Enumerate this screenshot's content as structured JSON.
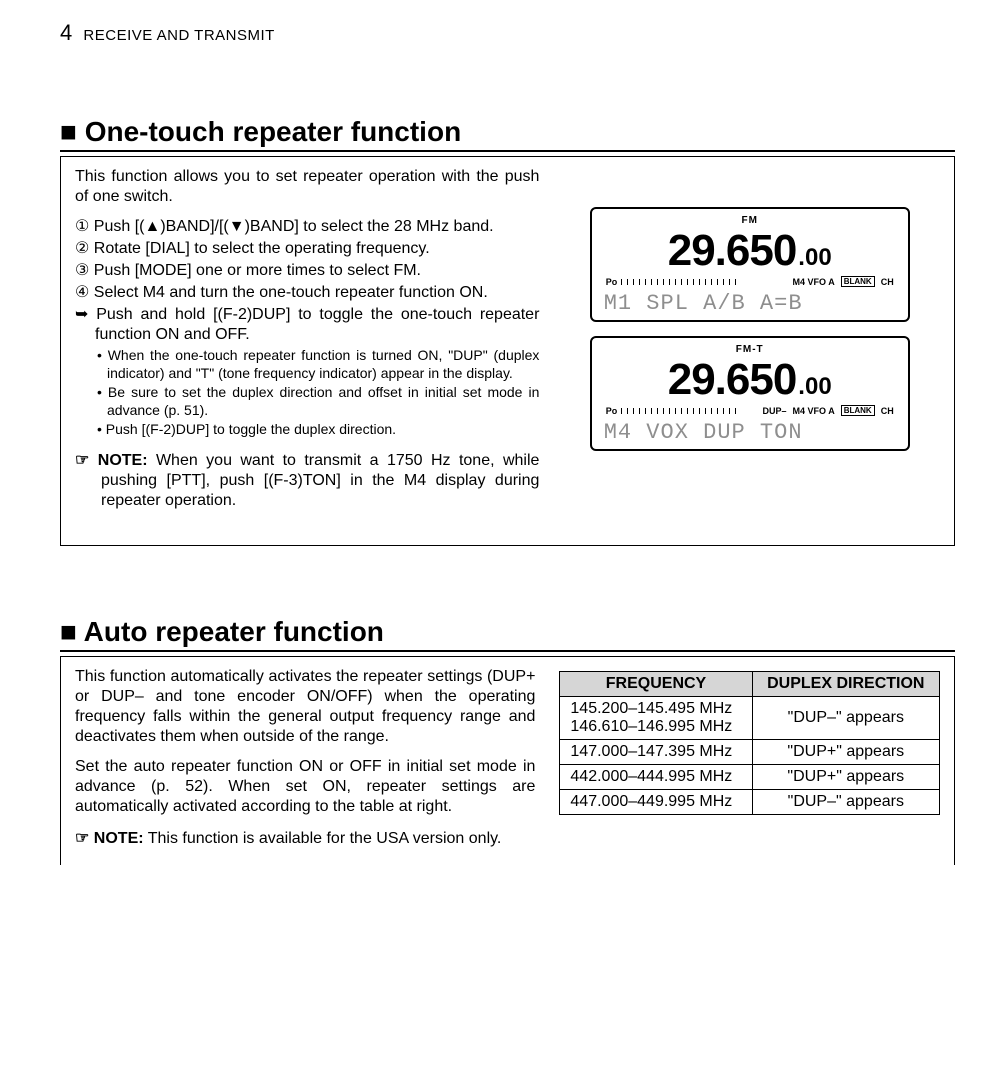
{
  "header": {
    "chapter_num": "4",
    "chapter_title": "RECEIVE AND TRANSMIT"
  },
  "section1": {
    "title_prefix": "■",
    "title": "One-touch repeater function",
    "intro": "This function allows you to set repeater operation with the push of one switch.",
    "steps": [
      "① Push [(▲)BAND]/[(▼)BAND] to select the 28 MHz band.",
      "② Rotate [DIAL] to select the operating frequency.",
      "③ Push [MODE] one or more times to select FM.",
      "④ Select M4 and turn the one-touch repeater function ON."
    ],
    "sub_arrow": "➥ Push and hold [(F-2)DUP] to toggle the one-touch repeater function ON and OFF.",
    "sub_bullets": [
      "• When the one-touch repeater function is turned ON, \"DUP\" (duplex indicator) and \"T\" (tone frequency indicator) appear in the display.",
      "• Be sure to set the duplex direction and offset in initial set mode in advance (p. 51).",
      "• Push [(F-2)DUP] to toggle the duplex direction."
    ],
    "note_prefix": "☞ NOTE:",
    "note_text": "When you want to transmit a 1750 Hz tone, while pushing [PTT], push [(F-3)TON] in the M4 display during repeater operation.",
    "lcd1": {
      "top": "FM",
      "freq_main": "29.650",
      "freq_sub": ".00",
      "mid_left_text": "Po",
      "mid_right_text": "M4  VFO A",
      "blank_label": "BLANK",
      "ch_label": "CH",
      "bottom": "M1 SPL A/B A=B"
    },
    "lcd2": {
      "top": "FM-T",
      "freq_main": "29.650",
      "freq_sub": ".00",
      "mid_left_text": "Po",
      "mid_dup": "DUP–",
      "mid_right_text": "M4  VFO A",
      "blank_label": "BLANK",
      "ch_label": "CH",
      "bottom": "M4 VOX DUP TON"
    }
  },
  "section2": {
    "title_prefix": "■",
    "title": "Auto repeater function",
    "para1": "This function automatically activates the repeater settings (DUP+ or DUP– and tone encoder ON/OFF) when the operating frequency falls within the general output frequency range and deactivates them when outside of the range.",
    "para2": "Set the auto repeater function ON or OFF in initial set mode in advance (p. 52). When set ON, repeater settings are automatically activated according to the table at right.",
    "note_prefix": "☞ NOTE:",
    "note_text": "This function is available for the USA version only.",
    "table": {
      "header_freq": "FREQUENCY",
      "header_dir": "DUPLEX DIRECTION",
      "rows": [
        {
          "freq": "145.200–145.495 MHz\n146.610–146.995 MHz",
          "dir": "\"DUP–\" appears"
        },
        {
          "freq": "147.000–147.395 MHz",
          "dir": "\"DUP+\" appears"
        },
        {
          "freq": "442.000–444.995 MHz",
          "dir": "\"DUP+\" appears"
        },
        {
          "freq": "447.000–449.995 MHz",
          "dir": "\"DUP–\" appears"
        }
      ]
    }
  }
}
